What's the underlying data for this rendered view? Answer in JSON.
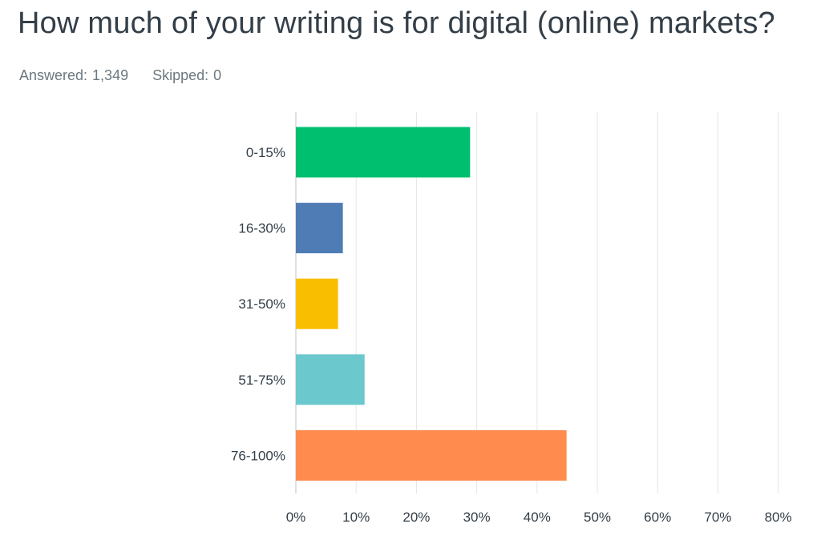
{
  "question": {
    "title": "How much of your writing is for digital (online) markets?"
  },
  "stats": {
    "answered_label": "Answered:",
    "answered_value": "1,349",
    "skipped_label": "Skipped:",
    "skipped_value": "0"
  },
  "chart_data": {
    "type": "bar",
    "orientation": "horizontal",
    "title": "",
    "xlabel": "",
    "ylabel": "",
    "categories": [
      "0-15%",
      "16-30%",
      "31-50%",
      "51-75%",
      "76-100%"
    ],
    "values": [
      28.9,
      7.8,
      7.0,
      11.4,
      44.9
    ],
    "value_unit": "percent of respondents",
    "colors": [
      "#00bf6f",
      "#507cb6",
      "#f9be00",
      "#6bc8cd",
      "#ff8b4f"
    ],
    "xlim": [
      0,
      87
    ],
    "xticks": [
      0,
      10,
      20,
      30,
      40,
      50,
      60,
      70,
      80
    ],
    "xtick_labels": [
      "0%",
      "10%",
      "20%",
      "30%",
      "40%",
      "50%",
      "60%",
      "70%",
      "80%"
    ],
    "grid": "vertical",
    "legend": "none"
  }
}
